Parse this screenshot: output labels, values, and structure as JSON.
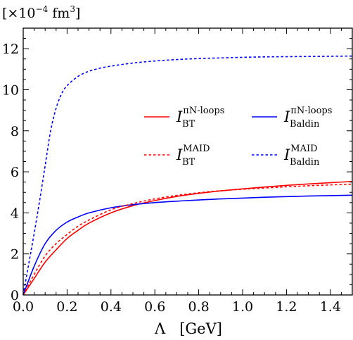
{
  "chart_data": {
    "type": "line",
    "ylabel": "[×10⁻⁴ fm³]",
    "ylabel_parts": {
      "open": "[×10",
      "exp": "−4",
      "mid": " fm",
      "pow": "3",
      "close": "]"
    },
    "xlabel": "Λ   [GeV]",
    "xlim": [
      0.0,
      1.5
    ],
    "ylim": [
      0,
      13
    ],
    "x_ticks": [
      0.0,
      0.2,
      0.4,
      0.6,
      0.8,
      1.0,
      1.2,
      1.4
    ],
    "x_tick_labels": [
      "0.0",
      "0.2",
      "0.4",
      "0.6",
      "0.8",
      "1.0",
      "1.2",
      "1.4"
    ],
    "y_ticks": [
      0,
      2,
      4,
      6,
      8,
      10,
      12
    ],
    "y_tick_labels": [
      "0",
      "2",
      "4",
      "6",
      "8",
      "10",
      "12"
    ],
    "grid": false,
    "legend_position": "upper-right",
    "series": [
      {
        "name": "I_BT^{πN-loops}",
        "legend": {
          "main": "I",
          "sub": "BT",
          "sup": "πN-loops"
        },
        "color": "#ff0000",
        "dash": "solid",
        "x": [
          0.0,
          0.05,
          0.1,
          0.15,
          0.2,
          0.25,
          0.3,
          0.4,
          0.5,
          0.6,
          0.7,
          0.8,
          0.9,
          1.0,
          1.1,
          1.2,
          1.3,
          1.4,
          1.5
        ],
        "y": [
          0.0,
          0.8,
          1.6,
          2.2,
          2.75,
          3.15,
          3.5,
          4.0,
          4.35,
          4.6,
          4.8,
          4.95,
          5.07,
          5.17,
          5.26,
          5.34,
          5.41,
          5.47,
          5.53
        ]
      },
      {
        "name": "I_Baldin^{πN-loops}",
        "legend": {
          "main": "I",
          "sub": "Baldin",
          "sup": "πN-loops"
        },
        "color": "#0000ff",
        "dash": "solid",
        "x": [
          0.0,
          0.05,
          0.1,
          0.15,
          0.2,
          0.25,
          0.3,
          0.4,
          0.5,
          0.6,
          0.7,
          0.8,
          0.9,
          1.0,
          1.1,
          1.2,
          1.3,
          1.4,
          1.5
        ],
        "y": [
          0.0,
          1.4,
          2.5,
          3.15,
          3.55,
          3.8,
          4.0,
          4.25,
          4.4,
          4.5,
          4.57,
          4.63,
          4.68,
          4.72,
          4.76,
          4.79,
          4.82,
          4.84,
          4.86
        ]
      },
      {
        "name": "I_BT^{MAID}",
        "legend": {
          "main": "I",
          "sub": "BT",
          "sup": "MAID"
        },
        "color": "#ff0000",
        "dash": "dotted",
        "x": [
          0.0,
          0.05,
          0.1,
          0.15,
          0.2,
          0.25,
          0.3,
          0.4,
          0.5,
          0.6,
          0.7,
          0.8,
          0.9,
          1.0,
          1.1,
          1.2,
          1.3,
          1.4,
          1.5
        ],
        "y": [
          0.0,
          1.0,
          1.9,
          2.5,
          2.95,
          3.35,
          3.65,
          4.15,
          4.45,
          4.68,
          4.85,
          4.98,
          5.08,
          5.15,
          5.21,
          5.27,
          5.32,
          5.36,
          5.4
        ]
      },
      {
        "name": "I_Baldin^{MAID}",
        "legend": {
          "main": "I",
          "sub": "Baldin",
          "sup": "MAID"
        },
        "color": "#0000ff",
        "dash": "dotted",
        "x": [
          0.0,
          0.025,
          0.05,
          0.075,
          0.1,
          0.125,
          0.15,
          0.175,
          0.2,
          0.25,
          0.3,
          0.35,
          0.4,
          0.5,
          0.6,
          0.7,
          0.8,
          0.9,
          1.0,
          1.1,
          1.2,
          1.3,
          1.4,
          1.5
        ],
        "y": [
          0.0,
          1.5,
          3.0,
          4.6,
          6.3,
          8.0,
          9.1,
          9.8,
          10.2,
          10.65,
          10.9,
          11.05,
          11.15,
          11.3,
          11.4,
          11.47,
          11.52,
          11.55,
          11.58,
          11.6,
          11.61,
          11.62,
          11.63,
          11.64
        ]
      }
    ]
  }
}
